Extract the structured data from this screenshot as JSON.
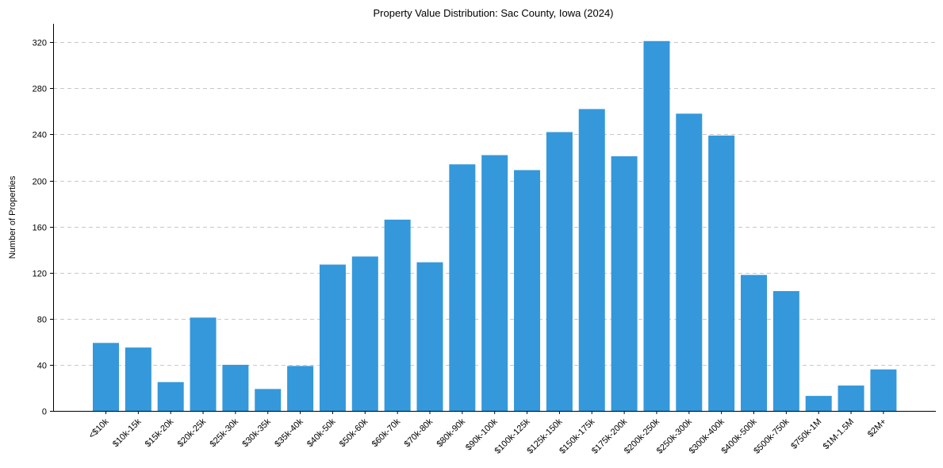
{
  "chart_data": {
    "type": "bar",
    "title": "Property Value Distribution: Sac County, Iowa (2024)",
    "xlabel": "",
    "ylabel": "Number of Properties",
    "ylim": [
      0,
      336
    ],
    "yticks": [
      0,
      40,
      80,
      120,
      160,
      200,
      240,
      280,
      320
    ],
    "grid": "y",
    "bar_color": "#3498db",
    "categories": [
      "<$10k",
      "$10k-15k",
      "$15k-20k",
      "$20k-25k",
      "$25k-30k",
      "$30k-35k",
      "$35k-40k",
      "$40k-50k",
      "$50k-60k",
      "$60k-70k",
      "$70k-80k",
      "$80k-90k",
      "$90k-100k",
      "$100k-125k",
      "$125k-150k",
      "$150k-175k",
      "$175k-200k",
      "$200k-250k",
      "$250k-300k",
      "$300k-400k",
      "$400k-500k",
      "$500k-750k",
      "$750k-1M",
      "$1M-1.5M",
      "$2M+"
    ],
    "values": [
      59,
      55,
      25,
      81,
      40,
      19,
      39,
      127,
      134,
      166,
      129,
      214,
      222,
      209,
      242,
      262,
      221,
      321,
      258,
      239,
      118,
      104,
      13,
      22,
      36
    ]
  }
}
